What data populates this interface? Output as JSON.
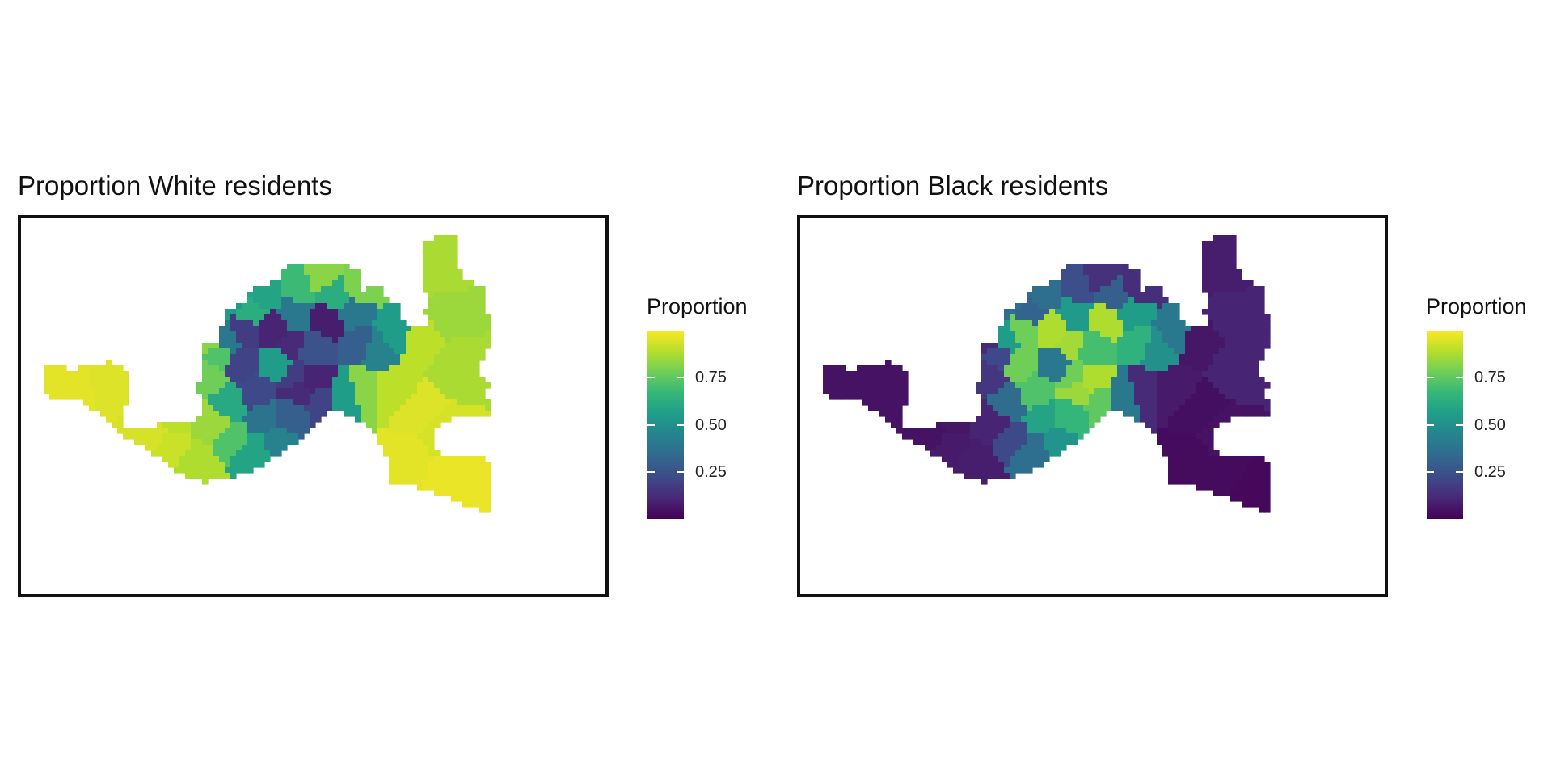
{
  "maps": [
    {
      "title": "Proportion White residents",
      "variable": "white",
      "legend": {
        "title": "Proportion",
        "ticks": [
          {
            "value": 0.75,
            "label": "0.75"
          },
          {
            "value": 0.5,
            "label": "0.50"
          },
          {
            "value": 0.25,
            "label": "0.25"
          }
        ]
      }
    },
    {
      "title": "Proportion Black residents",
      "variable": "black",
      "legend": {
        "title": "Proportion",
        "ticks": [
          {
            "value": 0.75,
            "label": "0.75"
          },
          {
            "value": 0.5,
            "label": "0.50"
          },
          {
            "value": 0.25,
            "label": "0.25"
          }
        ]
      }
    }
  ],
  "colors": {
    "palette": "viridis",
    "stops": [
      "#440154",
      "#482878",
      "#3e4a89",
      "#31688e",
      "#26828e",
      "#1f9e89",
      "#35b779",
      "#6ece58",
      "#b5de2b",
      "#fde725"
    ],
    "frame": "#111111"
  }
}
